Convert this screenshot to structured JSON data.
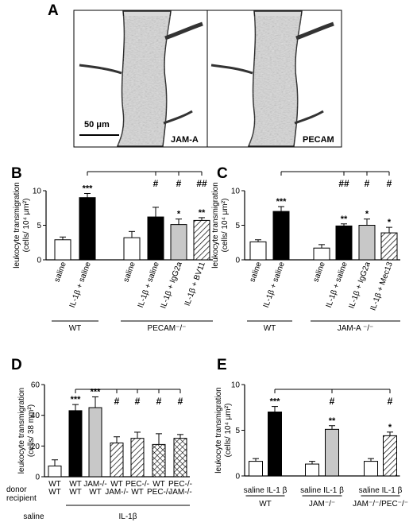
{
  "panel_a": {
    "label": "A",
    "scale_bar": "50 μm",
    "left_stain": "JAM-A",
    "right_stain": "PECAM"
  },
  "chart_data": [
    {
      "panel": "B",
      "type": "bar",
      "ylabel": "leukocyte transmigration (cells/ 10⁴ μm²)",
      "ylim": [
        0,
        10
      ],
      "yticks": [
        "0",
        "5",
        "10"
      ],
      "categories": [
        "saline",
        "IL-1β + saline",
        "saline",
        "IL-1β + saline",
        "IL-1β + IgG2a",
        "IL-1β + BV11"
      ],
      "values": [
        2.9,
        9.0,
        3.2,
        6.2,
        5.1,
        5.7
      ],
      "errors": [
        0.4,
        0.6,
        0.9,
        1.4,
        0.8,
        0.4
      ],
      "fills": [
        "white",
        "black",
        "white",
        "black",
        "gray",
        "hatch"
      ],
      "stars": [
        "",
        "***",
        "",
        "",
        "*",
        "**"
      ],
      "hashes": [
        "",
        "",
        "",
        "#",
        "#",
        "##"
      ],
      "groups": [
        {
          "label": "WT",
          "from": 0,
          "to": 1
        },
        {
          "label": "PECAM⁻/⁻",
          "from": 2,
          "to": 5
        }
      ]
    },
    {
      "panel": "C",
      "type": "bar",
      "ylabel": "leukocyte transmigration (cells/ 10⁴ μm²)",
      "ylim": [
        0,
        10
      ],
      "yticks": [
        "0",
        "5",
        "10"
      ],
      "categories": [
        "saline",
        "IL-1β + saline",
        "saline",
        "IL-1β + saline",
        "IL-1β + IgG2a",
        "IL-1β + Mec13"
      ],
      "values": [
        2.6,
        7.0,
        1.7,
        4.9,
        5.0,
        3.9
      ],
      "errors": [
        0.3,
        0.7,
        0.5,
        0.3,
        0.9,
        0.8
      ],
      "fills": [
        "white",
        "black",
        "white",
        "black",
        "gray",
        "hatch"
      ],
      "stars": [
        "",
        "***",
        "",
        "**",
        "*",
        "*"
      ],
      "hashes": [
        "",
        "",
        "",
        "##",
        "#",
        "#"
      ],
      "groups": [
        {
          "label": "WT",
          "from": 0,
          "to": 1
        },
        {
          "label": "JAM-A ⁻/⁻",
          "from": 2,
          "to": 5
        }
      ]
    },
    {
      "panel": "D",
      "type": "bar",
      "ylabel": "leukocyte transmigration (cells/ 38 mm²)",
      "ylim": [
        0,
        60
      ],
      "yticks": [
        "0",
        "20",
        "40",
        "60"
      ],
      "row_labels": [
        "donor",
        "recipient"
      ],
      "donor": [
        "WT",
        "WT",
        "JAM-/-",
        "WT",
        "PEC-/-",
        "WT",
        "PEC-/-"
      ],
      "recipient": [
        "WT",
        "WT",
        "WT",
        "JAM-/-",
        "WT",
        "PEC-/-",
        "JAM-/-"
      ],
      "values": [
        7,
        43,
        45,
        22,
        25,
        21,
        25
      ],
      "errors": [
        4,
        4,
        7,
        4,
        4,
        7,
        2.5
      ],
      "fills": [
        "white",
        "black",
        "gray",
        "hatch",
        "hatch",
        "crosshatch",
        "crosshatch"
      ],
      "stars": [
        "",
        "***",
        "***",
        "",
        "",
        "",
        ""
      ],
      "hashes": [
        "",
        "",
        "",
        "#",
        "#",
        "#",
        "#"
      ],
      "groups": [
        {
          "label": "saline",
          "from": 0,
          "to": 0
        },
        {
          "label": "IL-1β",
          "from": 1,
          "to": 6
        }
      ]
    },
    {
      "panel": "E",
      "type": "bar",
      "ylabel": "leukocyte transmigration (cells/ 10⁴ μm²)",
      "ylim": [
        0,
        10
      ],
      "yticks": [
        "0",
        "5",
        "10"
      ],
      "values": [
        1.6,
        7.0,
        1.3,
        5.1,
        1.6,
        4.4
      ],
      "errors": [
        0.3,
        0.6,
        0.3,
        0.4,
        0.3,
        0.4
      ],
      "fills": [
        "white",
        "black",
        "white",
        "gray",
        "white",
        "hatch"
      ],
      "stars": [
        "",
        "***",
        "",
        "**",
        "",
        "*"
      ],
      "hashes": [
        "",
        "",
        "",
        "#",
        "",
        "#"
      ],
      "pair_labels": [
        "saline IL-1 β",
        "saline IL-1 β",
        "saline IL-1 β"
      ],
      "groups": [
        {
          "label": "WT",
          "from": 0,
          "to": 1
        },
        {
          "label": "JAM⁻/⁻",
          "from": 2,
          "to": 3
        },
        {
          "label": "JAM⁻/⁻/PEC⁻/⁻",
          "from": 4,
          "to": 5
        }
      ]
    }
  ]
}
